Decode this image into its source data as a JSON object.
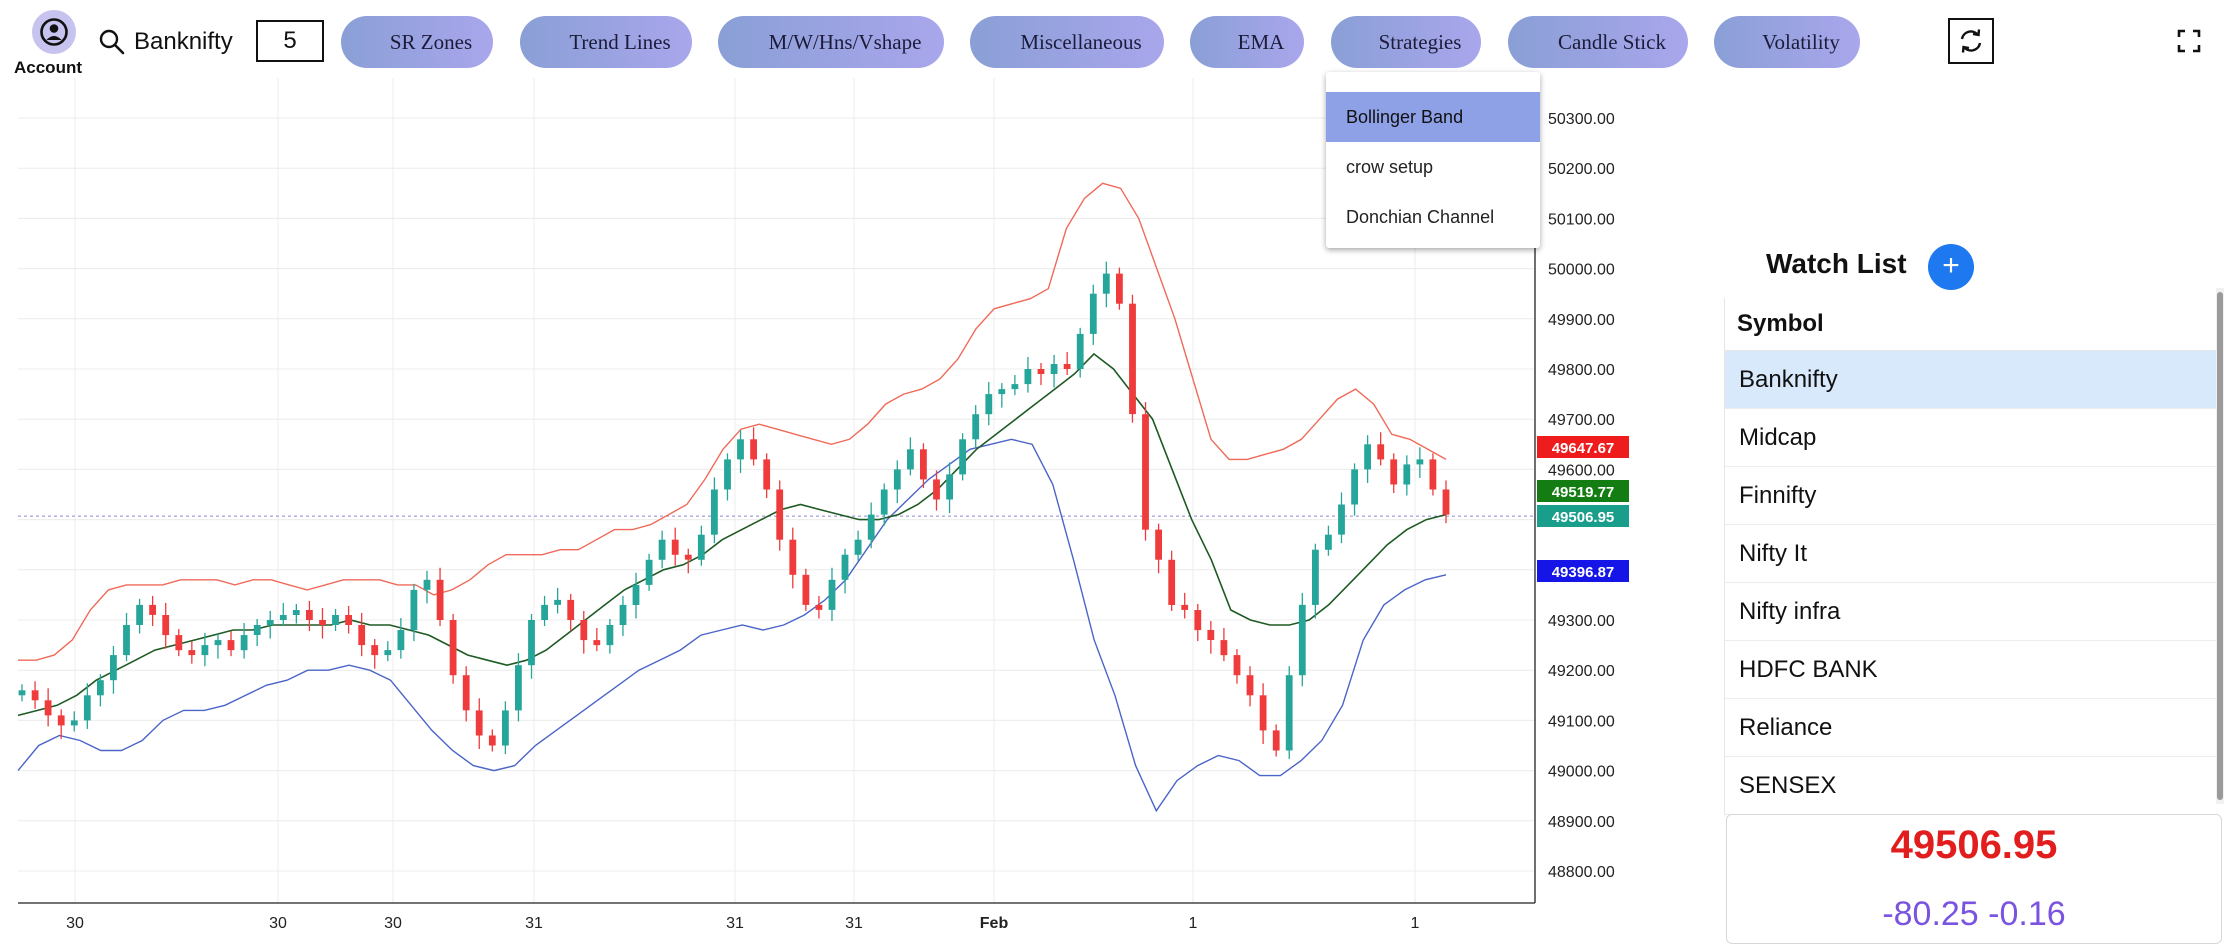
{
  "account": {
    "label": "Account"
  },
  "search": {
    "symbol": "Banknifty"
  },
  "interval": "5",
  "menu": [
    "SR Zones",
    "Trend Lines",
    "M/W/Hns/Vshape",
    "Miscellaneous",
    "EMA",
    "Strategies",
    "Candle Stick",
    "Volatility"
  ],
  "strategies_dropdown": {
    "items": [
      "Bollinger Band",
      "crow setup",
      "Donchian Channel"
    ],
    "active": "Bollinger Band"
  },
  "watchlist": {
    "title": "Watch List",
    "column_header": "Symbol",
    "items": [
      "Banknifty",
      "Midcap",
      "Finnifty",
      "Nifty It",
      "Nifty infra",
      "HDFC BANK",
      "Reliance",
      "SENSEX"
    ],
    "selected": "Banknifty"
  },
  "quote": {
    "price": "49506.95",
    "change": "-80.25",
    "change_pct": "-0.16"
  },
  "chart_data": {
    "type": "candlestick",
    "indicator": "Bollinger Band",
    "y_ticks": [
      "50300.00",
      "50200.00",
      "50100.00",
      "50000.00",
      "49900.00",
      "49800.00",
      "49700.00",
      "49600.00",
      "49300.00",
      "49200.00",
      "49100.00",
      "49000.00",
      "48900.00",
      "48800.00"
    ],
    "ylim": [
      48750,
      50360
    ],
    "x_ticks": [
      "30",
      "30",
      "30",
      "31",
      "31",
      "31",
      "Feb",
      "1",
      "1"
    ],
    "price_labels": [
      {
        "text": "49647.67",
        "value": 49647.67,
        "color": "#ee1c1c"
      },
      {
        "text": "49519.77",
        "value": 49519.77,
        "color": "#137d13"
      },
      {
        "text": "49506.95",
        "value": 49506.95,
        "color": "#1a9e8c"
      },
      {
        "text": "49396.87",
        "value": 49396.87,
        "color": "#1515e8"
      }
    ],
    "last_price": 49506.95,
    "close": [
      49160,
      49140,
      49110,
      49090,
      49100,
      49150,
      49180,
      49230,
      49290,
      49330,
      49310,
      49270,
      49240,
      49230,
      49250,
      49260,
      49240,
      49270,
      49290,
      49300,
      49310,
      49320,
      49300,
      49290,
      49310,
      49290,
      49250,
      49230,
      49240,
      49280,
      49360,
      49380,
      49300,
      49190,
      49120,
      49070,
      49050,
      49120,
      49210,
      49300,
      49330,
      49340,
      49300,
      49260,
      49250,
      49290,
      49330,
      49370,
      49420,
      49460,
      49430,
      49420,
      49470,
      49560,
      49620,
      49660,
      49620,
      49560,
      49460,
      49390,
      49330,
      49320,
      49380,
      49430,
      49460,
      49510,
      49560,
      49600,
      49640,
      49580,
      49540,
      49590,
      49660,
      49710,
      49750,
      49760,
      49770,
      49800,
      49790,
      49810,
      49800,
      49870,
      49950,
      49990,
      49930,
      49710,
      49480,
      49420,
      49330,
      49320,
      49280,
      49260,
      49230,
      49190,
      49150,
      49080,
      49040,
      49190,
      49330,
      49440,
      49470,
      49530,
      49600,
      49650,
      49620,
      49570,
      49610,
      49620,
      49560,
      49510
    ],
    "bollinger_upper": [
      49220,
      49220,
      49230,
      49260,
      49320,
      49360,
      49370,
      49370,
      49370,
      49380,
      49380,
      49380,
      49370,
      49380,
      49380,
      49370,
      49360,
      49370,
      49380,
      49380,
      49380,
      49370,
      49370,
      49350,
      49360,
      49380,
      49410,
      49430,
      49430,
      49430,
      49440,
      49440,
      49460,
      49480,
      49480,
      49490,
      49510,
      49530,
      49580,
      49640,
      49680,
      49690,
      49680,
      49670,
      49660,
      49650,
      49660,
      49690,
      49730,
      49750,
      49760,
      49780,
      49820,
      49880,
      49920,
      49930,
      49940,
      49960,
      50080,
      50140,
      50170,
      50160,
      50100,
      50000,
      49900,
      49780,
      49660,
      49620,
      49620,
      49630,
      49640,
      49660,
      49700,
      49740,
      49760,
      49730,
      49670,
      49660,
      49640,
      49620
    ],
    "bollinger_middle": [
      49110,
      49120,
      49130,
      49150,
      49180,
      49200,
      49220,
      49240,
      49250,
      49260,
      49270,
      49280,
      49280,
      49290,
      49290,
      49290,
      49290,
      49300,
      49290,
      49290,
      49280,
      49270,
      49250,
      49230,
      49220,
      49210,
      49220,
      49240,
      49270,
      49300,
      49330,
      49360,
      49380,
      49400,
      49410,
      49430,
      49460,
      49480,
      49500,
      49520,
      49530,
      49520,
      49510,
      49500,
      49500,
      49510,
      49530,
      49560,
      49600,
      49640,
      49670,
      49700,
      49730,
      49760,
      49790,
      49830,
      49800,
      49750,
      49700,
      49600,
      49500,
      49420,
      49320,
      49300,
      49290,
      49290,
      49300,
      49330,
      49370,
      49410,
      49450,
      49480,
      49500,
      49510
    ],
    "bollinger_lower": [
      49000,
      49050,
      49070,
      49060,
      49040,
      49040,
      49060,
      49100,
      49120,
      49120,
      49130,
      49150,
      49170,
      49180,
      49200,
      49200,
      49210,
      49200,
      49180,
      49130,
      49080,
      49040,
      49010,
      49000,
      49010,
      49050,
      49080,
      49110,
      49140,
      49170,
      49200,
      49220,
      49240,
      49270,
      49280,
      49290,
      49280,
      49290,
      49310,
      49340,
      49380,
      49440,
      49500,
      49540,
      49580,
      49610,
      49640,
      49650,
      49660,
      49650,
      49570,
      49420,
      49260,
      49150,
      49010,
      48920,
      48980,
      49010,
      49030,
      49020,
      48990,
      48990,
      49020,
      49060,
      49130,
      49260,
      49330,
      49360,
      49380,
      49390
    ]
  }
}
